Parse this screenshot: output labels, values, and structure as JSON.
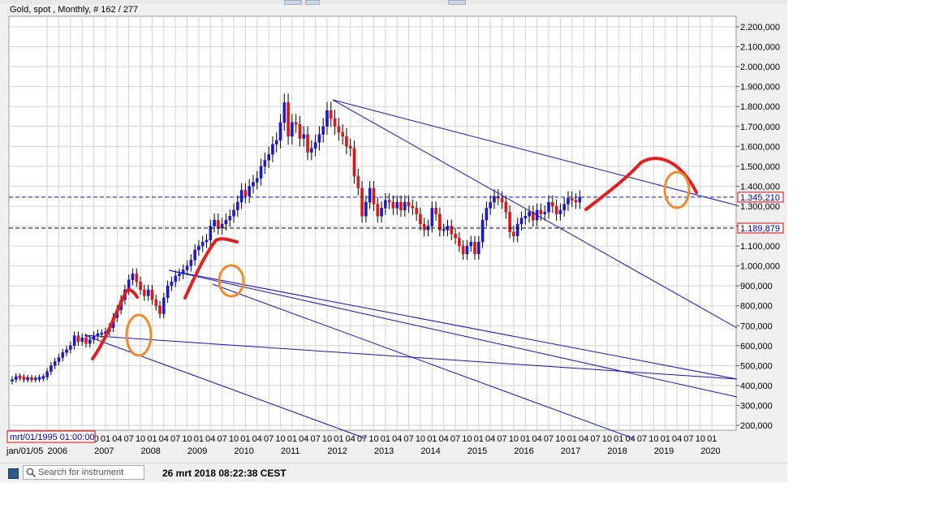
{
  "header": {
    "title": "Gold, spot , Monthly, # 162 / 277"
  },
  "status_bar": {
    "search_placeholder": "Search for instrument",
    "timestamp": "26 mrt 2018 08:22:38 CEST"
  },
  "cursor_label": "mrt/01/1995 01:00:00",
  "colors": {
    "up": "#1a1acc",
    "down": "#e01515",
    "trendline": "#1515b4",
    "annotation_red": "#e02020",
    "annotation_orange": "#f08a30"
  },
  "chart_data": {
    "type": "candlestick",
    "title": "Gold, spot , Monthly, # 162 / 277",
    "y_axis": {
      "min": 200000,
      "max": 2200000,
      "step": 100000,
      "position": "right",
      "tick_labels": [
        "2.200,000",
        "2.100,000",
        "2.000,000",
        "1.900,000",
        "1.800,000",
        "1.700,000",
        "1.600,000",
        "1.500,000",
        "1.400,000",
        "1.300,000",
        "1.200,000",
        "1.100,000",
        "1.000,000",
        "900,000",
        "800,000",
        "700,000",
        "600,000",
        "500,000",
        "400,000",
        "300,000",
        "200,000"
      ]
    },
    "x_axis": {
      "month_ticks": [
        "10",
        "01",
        "04",
        "07",
        "10",
        "01",
        "04",
        "07",
        "10",
        "01",
        "04",
        "07",
        "10",
        "01",
        "04",
        "07",
        "10",
        "01",
        "04",
        "07",
        "10",
        "01",
        "04",
        "07",
        "10",
        "01",
        "04",
        "07",
        "10",
        "01",
        "04",
        "07",
        "10",
        "01",
        "04",
        "07",
        "10",
        "01",
        "04",
        "07",
        "10",
        "01",
        "04",
        "07",
        "10",
        "01",
        "04",
        "07",
        "10",
        "01",
        "04",
        "07",
        "10",
        "01",
        "04",
        "07",
        "10",
        "01"
      ],
      "year_labels": [
        "jan/01/05",
        "2006",
        "2007",
        "2008",
        "2009",
        "2010",
        "2011",
        "2012",
        "2013",
        "2014",
        "2015",
        "2016",
        "2017",
        "2018",
        "2019",
        "2020"
      ]
    },
    "price_lines": [
      {
        "value": 1345210,
        "label": "1.345,210",
        "style": "dashed",
        "color": "#1515b4"
      },
      {
        "value": 1189879,
        "label": "1.189,879",
        "style": "dashed",
        "color": "#000000"
      }
    ],
    "grid": true,
    "candles_close": [
      430000,
      445000,
      440000,
      432000,
      437000,
      432000,
      434000,
      438000,
      442000,
      470000,
      500000,
      520000,
      540000,
      565000,
      580000,
      600000,
      650000,
      620000,
      640000,
      610000,
      630000,
      650000,
      660000,
      660000,
      670000,
      690000,
      740000,
      780000,
      830000,
      880000,
      930000,
      960000,
      920000,
      880000,
      850000,
      880000,
      830000,
      800000,
      760000,
      840000,
      900000,
      920000,
      950000,
      960000,
      980000,
      1000000,
      1030000,
      1080000,
      1100000,
      1120000,
      1130000,
      1200000,
      1230000,
      1190000,
      1210000,
      1230000,
      1250000,
      1280000,
      1320000,
      1380000,
      1350000,
      1400000,
      1420000,
      1440000,
      1500000,
      1530000,
      1560000,
      1610000,
      1630000,
      1720000,
      1820000,
      1650000,
      1720000,
      1710000,
      1640000,
      1660000,
      1570000,
      1590000,
      1620000,
      1660000,
      1700000,
      1780000,
      1740000,
      1700000,
      1670000,
      1650000,
      1600000,
      1590000,
      1450000,
      1390000,
      1250000,
      1320000,
      1390000,
      1310000,
      1250000,
      1290000,
      1330000,
      1320000,
      1290000,
      1320000,
      1280000,
      1320000,
      1300000,
      1290000,
      1260000,
      1210000,
      1180000,
      1200000,
      1290000,
      1260000,
      1180000,
      1180000,
      1200000,
      1160000,
      1140000,
      1100000,
      1060000,
      1100000,
      1120000,
      1060000,
      1120000,
      1230000,
      1290000,
      1320000,
      1350000,
      1340000,
      1320000,
      1270000,
      1170000,
      1150000,
      1210000,
      1240000,
      1250000,
      1270000,
      1230000,
      1280000,
      1260000,
      1270000,
      1320000,
      1300000,
      1260000,
      1280000,
      1310000,
      1340000,
      1330000,
      1320000,
      1345210
    ]
  }
}
